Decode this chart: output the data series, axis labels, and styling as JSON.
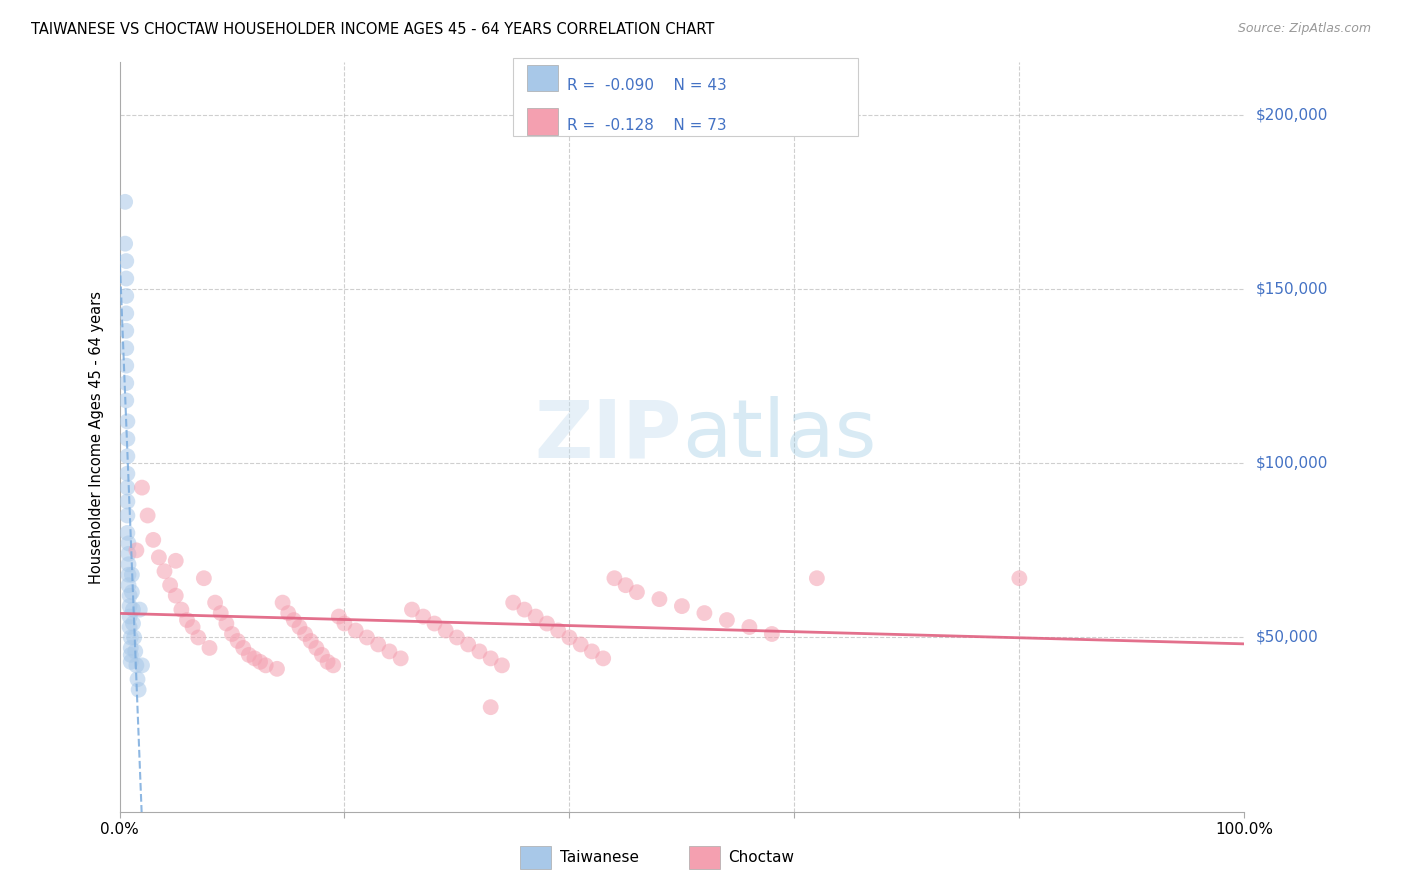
{
  "title": "TAIWANESE VS CHOCTAW HOUSEHOLDER INCOME AGES 45 - 64 YEARS CORRELATION CHART",
  "source": "Source: ZipAtlas.com",
  "ylabel": "Householder Income Ages 45 - 64 years",
  "y_tick_labels": [
    "$200,000",
    "$150,000",
    "$100,000",
    "$50,000"
  ],
  "y_tick_values": [
    200000,
    150000,
    100000,
    50000
  ],
  "xlim": [
    0.0,
    100.0
  ],
  "ylim": [
    0,
    215000
  ],
  "watermark_zip": "ZIP",
  "watermark_atlas": "atlas",
  "taiwanese_x": [
    0.5,
    0.5,
    0.6,
    0.6,
    0.6,
    0.6,
    0.6,
    0.6,
    0.6,
    0.6,
    0.6,
    0.7,
    0.7,
    0.7,
    0.7,
    0.7,
    0.7,
    0.7,
    0.7,
    0.8,
    0.8,
    0.8,
    0.8,
    0.8,
    0.9,
    0.9,
    0.9,
    0.9,
    1.0,
    1.0,
    1.0,
    1.0,
    1.1,
    1.1,
    1.2,
    1.2,
    1.3,
    1.4,
    1.5,
    1.6,
    1.7,
    1.8,
    2.0
  ],
  "taiwanese_y": [
    175000,
    163000,
    158000,
    153000,
    148000,
    143000,
    138000,
    133000,
    128000,
    123000,
    118000,
    112000,
    107000,
    102000,
    97000,
    93000,
    89000,
    85000,
    80000,
    77000,
    74000,
    71000,
    68000,
    65000,
    62000,
    59000,
    56000,
    53000,
    50000,
    47000,
    45000,
    43000,
    68000,
    63000,
    58000,
    54000,
    50000,
    46000,
    42000,
    38000,
    35000,
    58000,
    42000
  ],
  "choctaw_x": [
    1.5,
    2.0,
    2.5,
    3.0,
    3.5,
    4.0,
    4.5,
    5.0,
    5.0,
    5.5,
    6.0,
    6.5,
    7.0,
    7.5,
    8.0,
    8.5,
    9.0,
    9.5,
    10.0,
    10.5,
    11.0,
    11.5,
    12.0,
    12.5,
    13.0,
    14.0,
    14.5,
    15.0,
    15.5,
    16.0,
    16.5,
    17.0,
    17.5,
    18.0,
    18.5,
    19.0,
    19.5,
    20.0,
    21.0,
    22.0,
    23.0,
    24.0,
    25.0,
    26.0,
    27.0,
    28.0,
    29.0,
    30.0,
    31.0,
    32.0,
    33.0,
    34.0,
    35.0,
    36.0,
    37.0,
    38.0,
    39.0,
    40.0,
    41.0,
    42.0,
    43.0,
    44.0,
    45.0,
    46.0,
    48.0,
    50.0,
    52.0,
    54.0,
    56.0,
    58.0,
    62.0,
    80.0,
    33.0
  ],
  "choctaw_y": [
    75000,
    93000,
    85000,
    78000,
    73000,
    69000,
    65000,
    62000,
    72000,
    58000,
    55000,
    53000,
    50000,
    67000,
    47000,
    60000,
    57000,
    54000,
    51000,
    49000,
    47000,
    45000,
    44000,
    43000,
    42000,
    41000,
    60000,
    57000,
    55000,
    53000,
    51000,
    49000,
    47000,
    45000,
    43000,
    42000,
    56000,
    54000,
    52000,
    50000,
    48000,
    46000,
    44000,
    58000,
    56000,
    54000,
    52000,
    50000,
    48000,
    46000,
    44000,
    42000,
    60000,
    58000,
    56000,
    54000,
    52000,
    50000,
    48000,
    46000,
    44000,
    67000,
    65000,
    63000,
    61000,
    59000,
    57000,
    55000,
    53000,
    51000,
    67000,
    67000,
    30000
  ],
  "taiwanese_R": -0.09,
  "taiwanese_N": 43,
  "choctaw_R": -0.128,
  "choctaw_N": 73,
  "dot_size": 130,
  "dot_alpha": 0.55,
  "taiwanese_color": "#a8c8e8",
  "choctaw_color": "#f4a0b0",
  "taiwanese_line_color": "#7aabdd",
  "choctaw_line_color": "#e06080",
  "right_label_color": "#4472C4",
  "grid_color": "#bbbbbb",
  "background_color": "#ffffff"
}
